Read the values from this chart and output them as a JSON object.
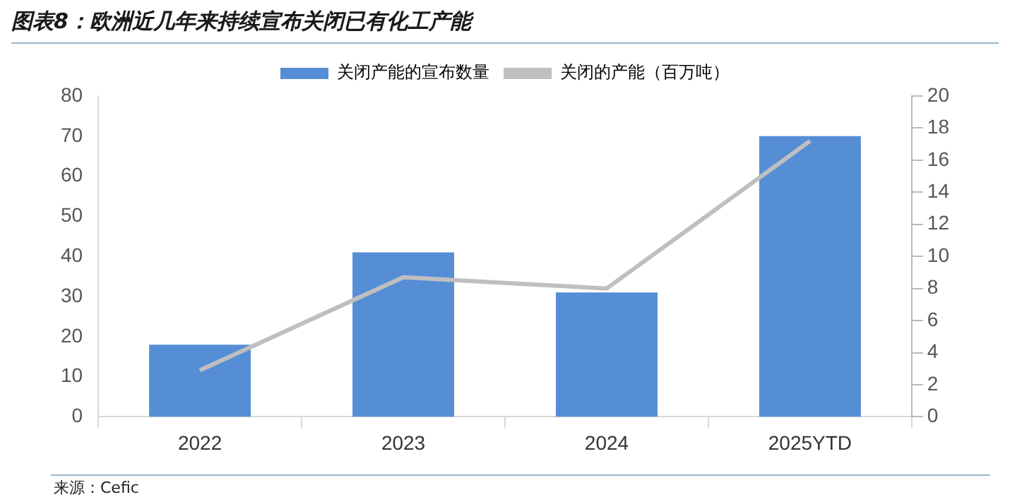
{
  "chart_data": {
    "type": "bar",
    "title": "图表8：欧洲近几年来持续宣布关闭已有化工产能",
    "categories": [
      "2022",
      "2023",
      "2024",
      "2025YTD"
    ],
    "series": [
      {
        "name": "关闭产能的宣布数量",
        "color": "#558ed5",
        "values": [
          18,
          41,
          31,
          70
        ]
      },
      {
        "name": "关闭的产能（百万吨）",
        "type": "line",
        "axis": "y2",
        "color": "#bfbfbf",
        "values": [
          2.9,
          8.7,
          8.0,
          17.2
        ]
      }
    ],
    "ylim": [
      0,
      80
    ],
    "yticks": [
      0,
      10,
      20,
      30,
      40,
      50,
      60,
      70,
      80
    ],
    "y2lim": [
      0,
      20
    ],
    "y2ticks": [
      0,
      2,
      4,
      6,
      8,
      10,
      12,
      14,
      16,
      18,
      20
    ],
    "grid": false,
    "legend": "top",
    "marker": "none",
    "line_style": "solid",
    "annotations": [
      "来源：Cefic"
    ]
  }
}
